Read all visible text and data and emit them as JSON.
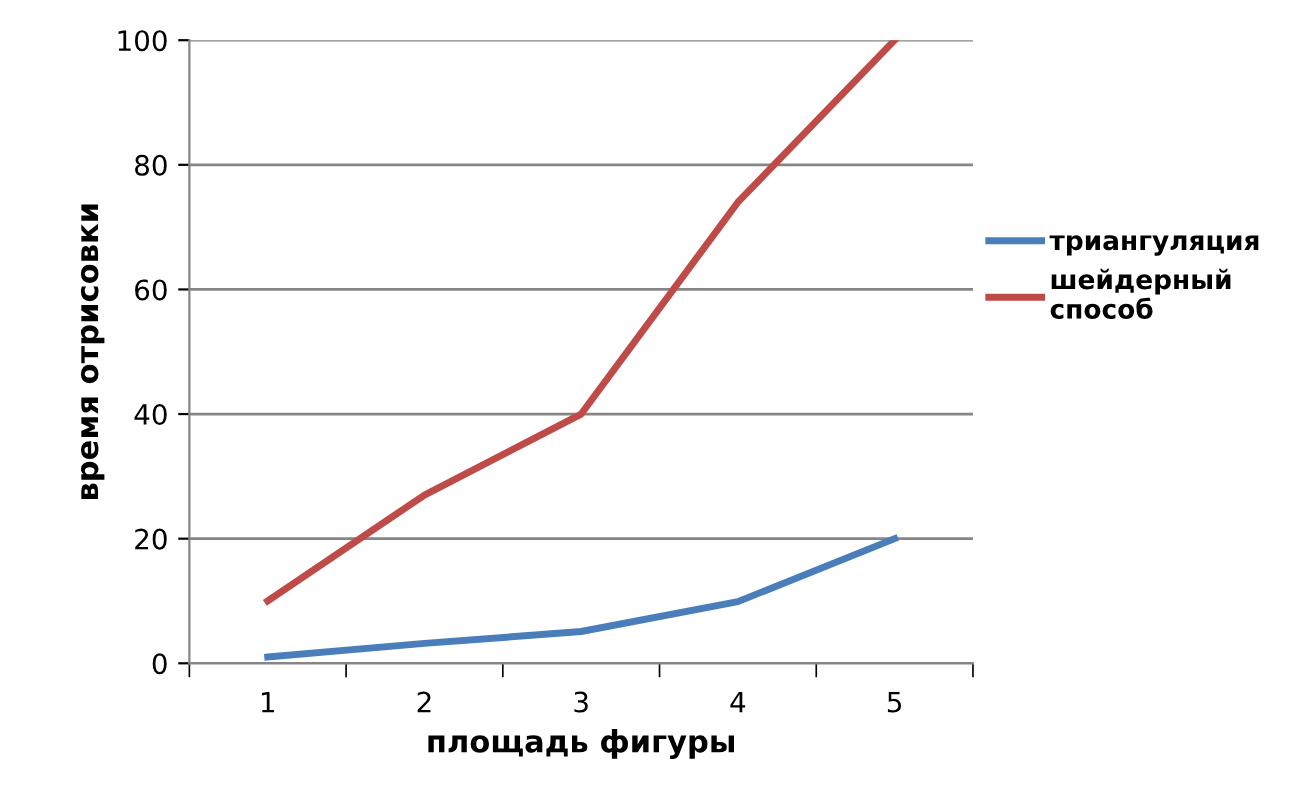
{
  "chart_data": {
    "type": "line",
    "xlabel": "площадь фигуры",
    "ylabel": "время отрисовки",
    "categories": [
      "1",
      "2",
      "3",
      "4",
      "5"
    ],
    "series": [
      {
        "name": "триангуляция",
        "color": "#4a7ebb",
        "values": [
          1,
          3.2,
          5.1,
          9.9,
          20
        ]
      },
      {
        "name": "шейдерный способ",
        "color": "#be4b48",
        "values": [
          10,
          27,
          40,
          74,
          100
        ]
      }
    ],
    "ylim": [
      0,
      100
    ],
    "yticks": [
      0,
      20,
      40,
      60,
      80,
      100
    ],
    "grid": "y",
    "legend": "right",
    "marker": "none",
    "line_style": "solid"
  }
}
